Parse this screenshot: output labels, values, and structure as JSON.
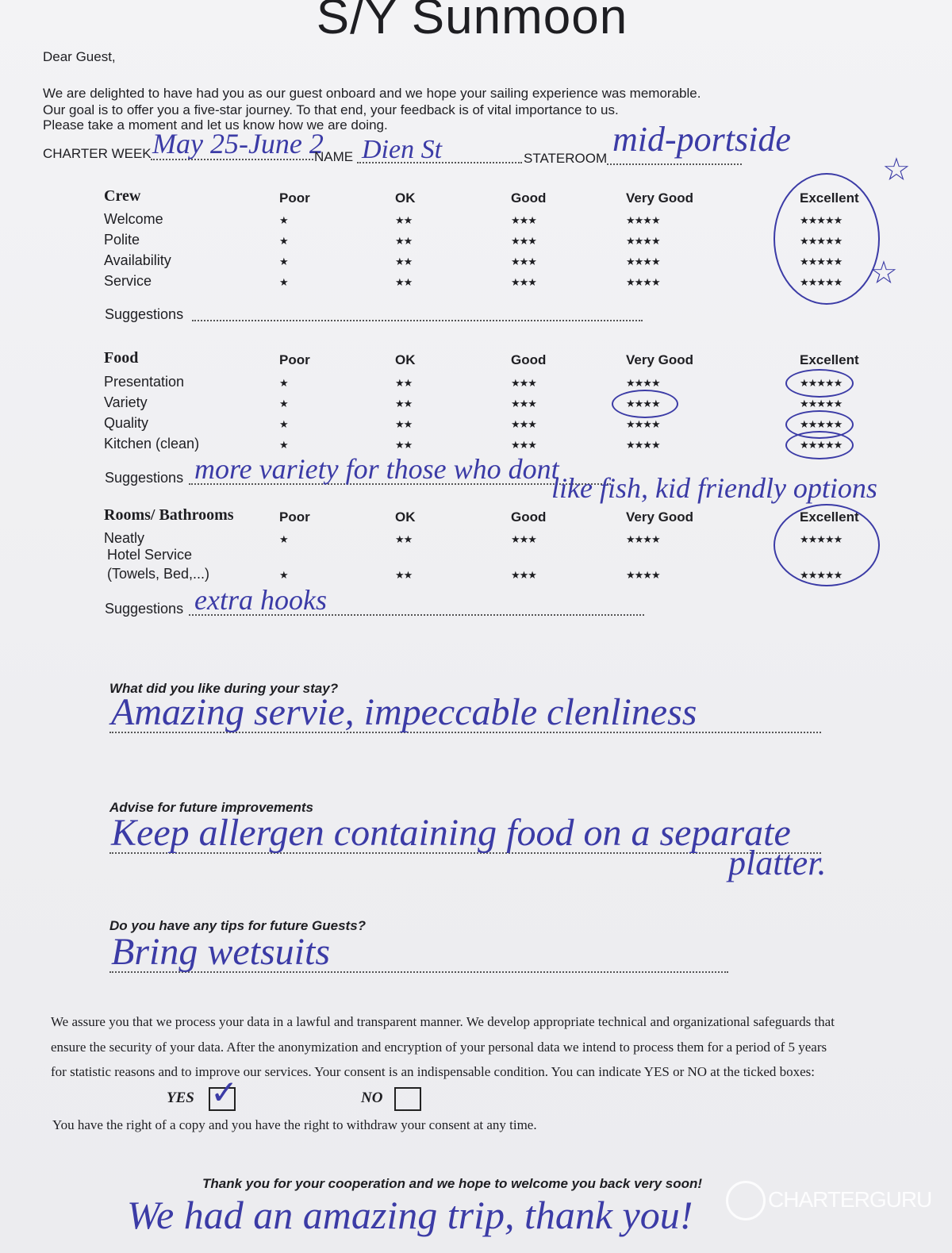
{
  "title": "S/Y Sunmoon",
  "greeting": "Dear Guest,",
  "intro": [
    "We are delighted to have had you as our guest onboard and we hope your sailing experience was memorable.",
    "Our goal is to offer you a five-star journey. To that end, your feedback is of vital importance to us.",
    "Please take a moment and let us know how we are doing."
  ],
  "header_fields": {
    "charter_week_label": "CHARTER WEEK",
    "charter_week_value": "May 25-June 2",
    "name_label": "NAME",
    "name_value": "Dien St",
    "stateroom_label": "STATEROOM",
    "stateroom_value": "mid-portside"
  },
  "rating_columns": [
    "Poor",
    "OK",
    "Good",
    "Very Good",
    "Excellent"
  ],
  "rating_stars": [
    "★",
    "★★",
    "★★★",
    "★★★★",
    "★★★★★"
  ],
  "suggestions_label": "Suggestions",
  "sections": [
    {
      "title": "Crew",
      "items": [
        {
          "label": "Welcome",
          "selected": "Excellent"
        },
        {
          "label": "Polite",
          "selected": "Excellent"
        },
        {
          "label": "Availability",
          "selected": "Excellent"
        },
        {
          "label": "Service",
          "selected": "Excellent"
        }
      ],
      "suggestion": ""
    },
    {
      "title": "Food",
      "items": [
        {
          "label": "Presentation",
          "selected": "Excellent"
        },
        {
          "label": "Variety",
          "selected": "Very Good"
        },
        {
          "label": "Quality",
          "selected": "Excellent"
        },
        {
          "label": "Kitchen (clean)",
          "selected": "Excellent"
        }
      ],
      "suggestion": "more variety for those who dont",
      "suggestion_cont": "like fish, kid friendly options"
    },
    {
      "title": "Rooms/ Bathrooms",
      "items": [
        {
          "label": "Neatly",
          "selected": "Excellent"
        },
        {
          "label": "Hotel Service",
          "label2": "(Towels, Bed,...)",
          "selected": "Excellent"
        }
      ],
      "suggestion": "extra hooks"
    }
  ],
  "questions": [
    {
      "q": "What did you like during your stay?",
      "a": "Amazing servie, impeccable clenliness"
    },
    {
      "q": "Advise for future improvements",
      "a": "Keep allergen containing food on a separate",
      "a2": "platter."
    },
    {
      "q": "Do you have any tips for future Guests?",
      "a": "Bring wetsuits"
    }
  ],
  "legal": [
    "We assure you that we process your data in a lawful and transparent manner. We develop appropriate technical and organizational safeguards that",
    "ensure the security of your data. After the anonymization and encryption of your personal data we intend to process them for a period of 5 years",
    "for statistic reasons and to improve our services. Your consent is an indispensable condition. You can indicate YES or NO at the ticked boxes:"
  ],
  "consent": {
    "yes_label": "YES",
    "no_label": "NO",
    "yes_checked": true,
    "no_checked": false,
    "check_mark": "✓"
  },
  "rights": "You have the right of a copy and you have the right to withdraw your consent at any time.",
  "closing": "Thank you for your cooperation and we hope to welcome you back very soon!",
  "handwritten_closing": "We had an amazing trip, thank you!",
  "watermark": "CHARTERGURU",
  "ink_color": "#3b3ba6"
}
